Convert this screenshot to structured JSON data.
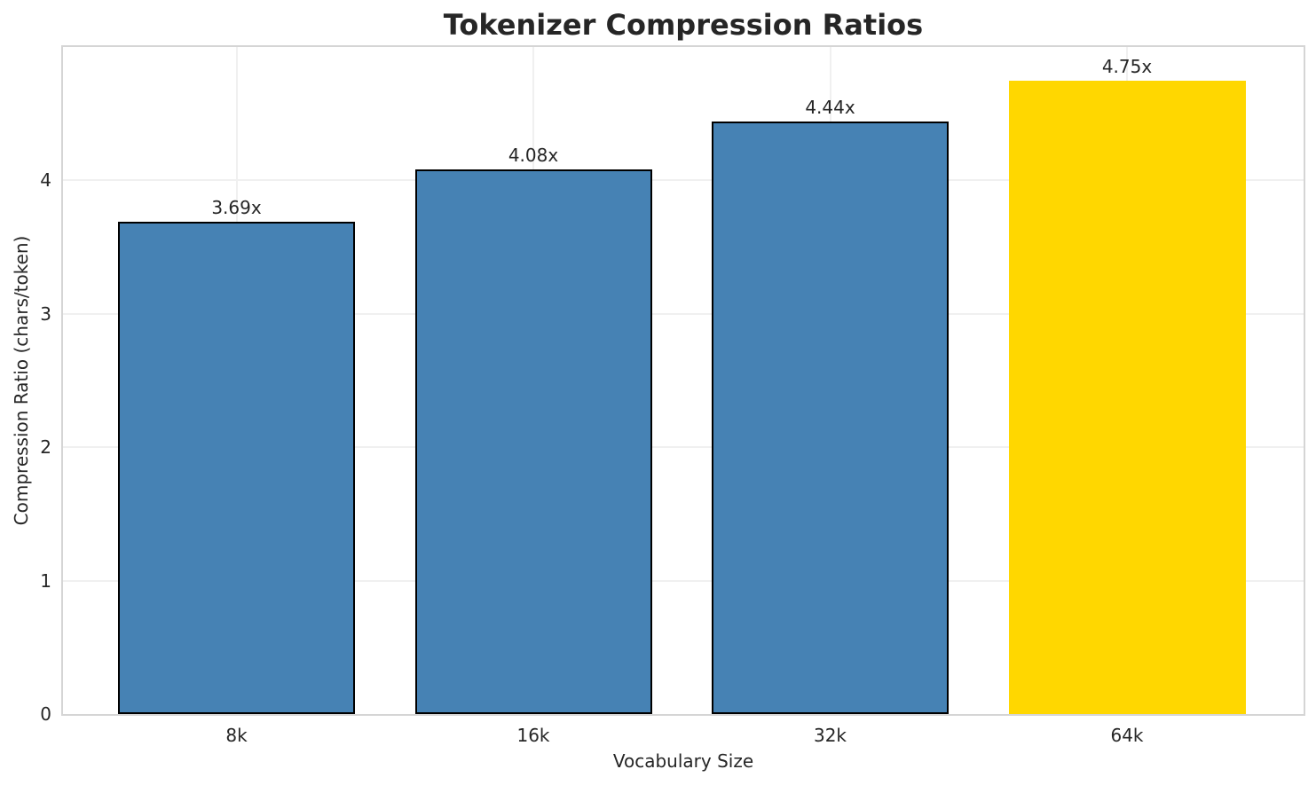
{
  "chart_data": {
    "type": "bar",
    "title": "Tokenizer Compression Ratios",
    "xlabel": "Vocabulary Size",
    "ylabel": "Compression Ratio (chars/token)",
    "categories": [
      "8k",
      "16k",
      "32k",
      "64k"
    ],
    "values": [
      3.69,
      4.08,
      4.44,
      4.75
    ],
    "bar_labels": [
      "3.69x",
      "4.08x",
      "4.44x",
      "4.75x"
    ],
    "bar_colors": [
      "#4682B4",
      "#4682B4",
      "#4682B4",
      "#FFD700"
    ],
    "bar_edge_colors": [
      "#000000",
      "#000000",
      "#000000",
      "none"
    ],
    "ylim": [
      0,
      5
    ],
    "yticks": [
      0,
      1,
      2,
      3,
      4
    ],
    "grid": "both",
    "legend": "none"
  },
  "colors": {
    "text": "#262626",
    "spine": "#d5d5d5",
    "gridline": "#f0f0f0",
    "background": "#ffffff"
  }
}
